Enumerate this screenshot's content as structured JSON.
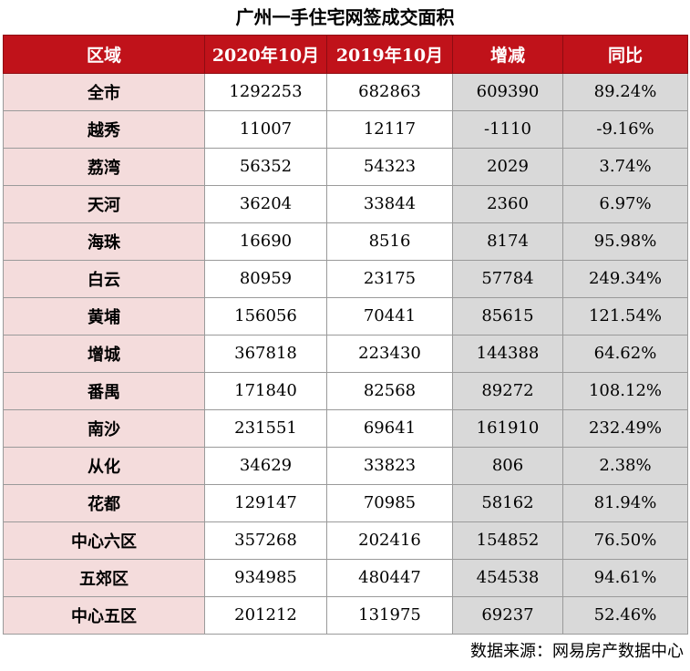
{
  "chart_data": {
    "type": "table",
    "title": "广州一手住宅网签成交面积",
    "columns": [
      "区域",
      "2020年10月",
      "2019年10月",
      "增减",
      "同比"
    ],
    "rows": [
      {
        "region": "全市",
        "v2020": "1292253",
        "v2019": "682863",
        "diff": "609390",
        "ratio": "89.24%"
      },
      {
        "region": "越秀",
        "v2020": "11007",
        "v2019": "12117",
        "diff": "-1110",
        "ratio": "-9.16%"
      },
      {
        "region": "荔湾",
        "v2020": "56352",
        "v2019": "54323",
        "diff": "2029",
        "ratio": "3.74%"
      },
      {
        "region": "天河",
        "v2020": "36204",
        "v2019": "33844",
        "diff": "2360",
        "ratio": "6.97%"
      },
      {
        "region": "海珠",
        "v2020": "16690",
        "v2019": "8516",
        "diff": "8174",
        "ratio": "95.98%"
      },
      {
        "region": "白云",
        "v2020": "80959",
        "v2019": "23175",
        "diff": "57784",
        "ratio": "249.34%"
      },
      {
        "region": "黄埔",
        "v2020": "156056",
        "v2019": "70441",
        "diff": "85615",
        "ratio": "121.54%"
      },
      {
        "region": "增城",
        "v2020": "367818",
        "v2019": "223430",
        "diff": "144388",
        "ratio": "64.62%"
      },
      {
        "region": "番禺",
        "v2020": "171840",
        "v2019": "82568",
        "diff": "89272",
        "ratio": "108.12%"
      },
      {
        "region": "南沙",
        "v2020": "231551",
        "v2019": "69641",
        "diff": "161910",
        "ratio": "232.49%"
      },
      {
        "region": "从化",
        "v2020": "34629",
        "v2019": "33823",
        "diff": "806",
        "ratio": "2.38%"
      },
      {
        "region": "花都",
        "v2020": "129147",
        "v2019": "70985",
        "diff": "58162",
        "ratio": "81.94%"
      },
      {
        "region": "中心六区",
        "v2020": "357268",
        "v2019": "202416",
        "diff": "154852",
        "ratio": "76.50%"
      },
      {
        "region": "五郊区",
        "v2020": "934985",
        "v2019": "480447",
        "diff": "454538",
        "ratio": "94.61%"
      },
      {
        "region": "中心五区",
        "v2020": "201212",
        "v2019": "131975",
        "diff": "69237",
        "ratio": "52.46%"
      }
    ],
    "highlights": {
      "max_red": "#e8231f",
      "min_green": "#2ea84b",
      "v2020_max_row": 7,
      "v2020_min_row": 1,
      "v2019_max_row": 7,
      "v2019_min_row": 4,
      "ratio_red_rows": [
        0,
        4,
        5,
        6,
        7,
        8,
        9,
        11,
        12,
        13,
        14
      ]
    },
    "colors": {
      "header_bg": "#c0121a",
      "region_bg": "#f4dcdc",
      "diff_bg": "#d9d9d9"
    }
  },
  "source": "数据来源：网易房产数据中心"
}
